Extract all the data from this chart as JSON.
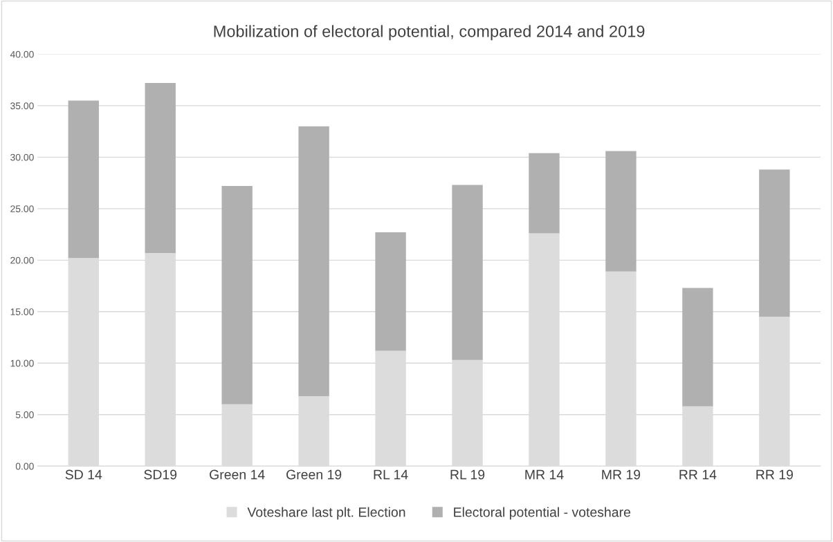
{
  "chart_data": {
    "type": "bar",
    "title": "Mobilization of electoral potential, compared 2014 and 2019",
    "categories": [
      "SD 14",
      "SD19",
      "Green 14",
      "Green 19",
      "RL 14",
      "RL 19",
      "MR 14",
      "MR 19",
      "RR 14",
      "RR 19"
    ],
    "stacked": true,
    "series": [
      {
        "name": "Voteshare last plt. Election",
        "color": "#dcdcdc",
        "values": [
          20.2,
          20.7,
          6.0,
          6.8,
          11.2,
          10.3,
          22.6,
          18.9,
          5.8,
          14.5
        ]
      },
      {
        "name": "Electoral potential - voteshare",
        "color": "#b0b0b0",
        "values": [
          15.3,
          16.5,
          21.2,
          26.2,
          11.5,
          17.0,
          7.8,
          11.7,
          11.5,
          14.3
        ]
      }
    ],
    "ylim": [
      0,
      40
    ],
    "yticks": [
      {
        "value": 0,
        "label": "0.00"
      },
      {
        "value": 5,
        "label": "5.00"
      },
      {
        "value": 10,
        "label": "10.00"
      },
      {
        "value": 15,
        "label": "15.00"
      },
      {
        "value": 20,
        "label": "20.00"
      },
      {
        "value": 25,
        "label": "25.00"
      },
      {
        "value": 30,
        "label": "30.00"
      },
      {
        "value": 35,
        "label": "35.00"
      },
      {
        "value": 40,
        "label": "40.00"
      }
    ],
    "grid": "y",
    "legend": "bottom"
  }
}
